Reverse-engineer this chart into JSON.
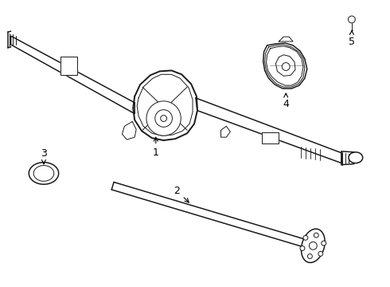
{
  "bg_color": "#ffffff",
  "line_color": "#1a1a1a",
  "label_color": "#000000",
  "lw_main": 1.1,
  "lw_thin": 0.7,
  "lw_thick": 1.4
}
